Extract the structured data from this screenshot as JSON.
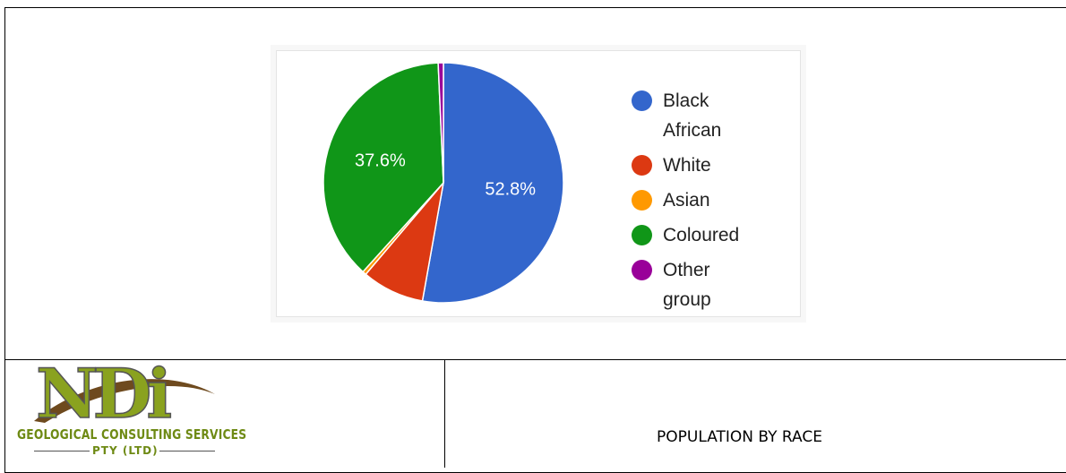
{
  "chart_data": {
    "type": "pie",
    "categories": [
      "Black African",
      "White",
      "Asian",
      "Coloured",
      "Other group"
    ],
    "values": [
      52.8,
      8.4,
      0.5,
      37.6,
      0.7
    ],
    "value_labels": [
      "52.8%",
      null,
      null,
      "37.6%",
      null
    ],
    "colors": [
      "#3366cc",
      "#dc3912",
      "#ff9900",
      "#109618",
      "#990099"
    ],
    "legend": "right"
  },
  "logo": {
    "mark": "NDi",
    "name": "GEOLOGICAL CONSULTING SERVICES",
    "sub": "PTY (LTD)"
  },
  "caption": "POPULATION BY RACE"
}
